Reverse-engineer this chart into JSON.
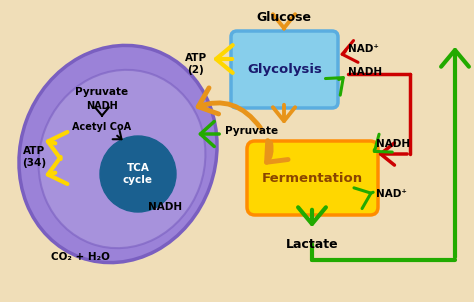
{
  "bg_outer": "#7ECFD4",
  "bg_cell": "#F0DEB8",
  "bg_cell_edge": "#2E8B6A",
  "mito_fill": "#9B82D8",
  "mito_edge": "#7A5FC0",
  "mito_inner_fill": "#B09EE0",
  "tca_fill": "#1A6090",
  "tca_text": "white",
  "glycolysis_fill": "#87CEEB",
  "glycolysis_edge": "#5AADE0",
  "fermentation_fill_top": "#FFD700",
  "fermentation_fill_bot": "#FF8C00",
  "orange_arrow": "#E8941A",
  "yellow_arrow": "#FFD700",
  "green_arrow": "#22AA00",
  "red_arrow": "#CC0000",
  "glucose_label": "Glucose",
  "glycolysis_label": "Glycolysis",
  "fermentation_label": "Fermentation",
  "tca_label": "TCA\ncycle",
  "atp2": "ATP\n(2)",
  "atp34": "ATP\n(34)",
  "pyruvate_center": "Pyruvate",
  "pyruvate_mito": "Pyruvate",
  "nadh_mito_top": "NADH",
  "acetyl_coa": "Acetyl CoA",
  "nadh_mito_bot": "NADH",
  "co2_h2o": "CO₂ + H₂O",
  "nad_plus_gly": "NAD⁺",
  "nadh_gly": "NADH",
  "nadh_ferm": "NADH",
  "nad_plus_ferm": "NAD⁺",
  "lactate": "Lactate"
}
